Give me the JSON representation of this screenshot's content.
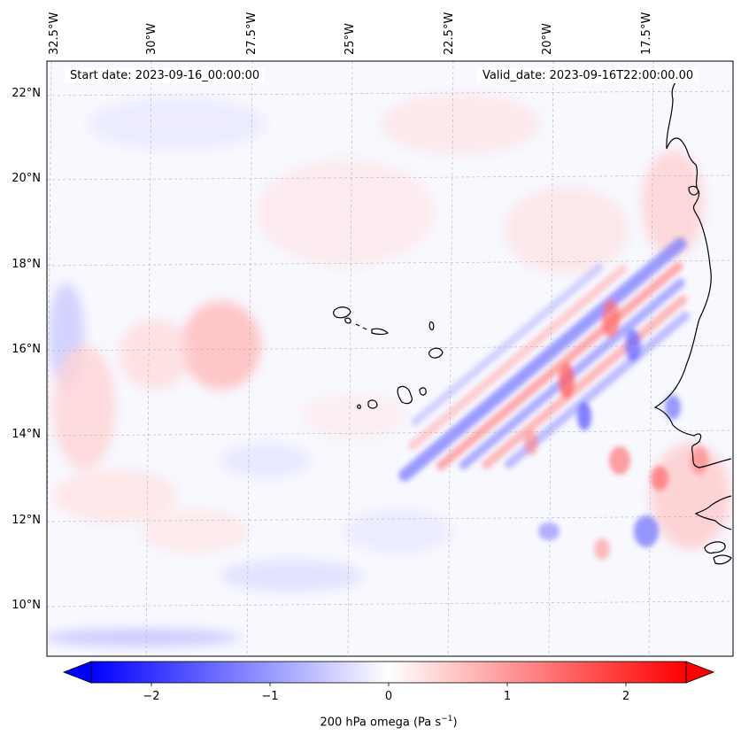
{
  "map": {
    "start_date_label": "Start date: 2023-09-16_00:00:00",
    "valid_date_label": "Valid_date: 2023-09-16T22:00:00.00",
    "lon_labels": [
      "32.5°W",
      "30°W",
      "27.5°W",
      "25°W",
      "22.5°W",
      "20°W",
      "17.5°W"
    ],
    "lat_labels": [
      "22°N",
      "20°N",
      "18°N",
      "16°N",
      "14°N",
      "12°N",
      "10°N"
    ],
    "extent": {
      "lon_min": -32.5,
      "lon_max": -15.5,
      "lat_min": 8.9,
      "lat_max": 22.8
    },
    "field": "200 hPa omega",
    "features": [
      "West African coastline",
      "Cape Verde islands"
    ]
  },
  "colorbar": {
    "label_main": "200 hPa omega (Pa s",
    "label_sup": "−1",
    "label_close": ")",
    "ticks": [
      "−2",
      "−1",
      "0",
      "1",
      "2"
    ],
    "tick_values": [
      -2,
      -1,
      0,
      1,
      2
    ],
    "range": [
      -2.75,
      2.75
    ],
    "cmap": "bwr",
    "color_neg": "#0000ff",
    "color_mid": "#ffffff",
    "color_pos": "#ff0000",
    "extend": "both"
  },
  "chart_data": {
    "type": "heatmap",
    "title": "",
    "xlabel": "",
    "ylabel": "",
    "xlim": [
      -32.5,
      -15.5
    ],
    "ylim": [
      8.9,
      22.8
    ],
    "value_label": "200 hPa omega (Pa s−1)",
    "vlim": [
      -2.75,
      2.75
    ]
  }
}
